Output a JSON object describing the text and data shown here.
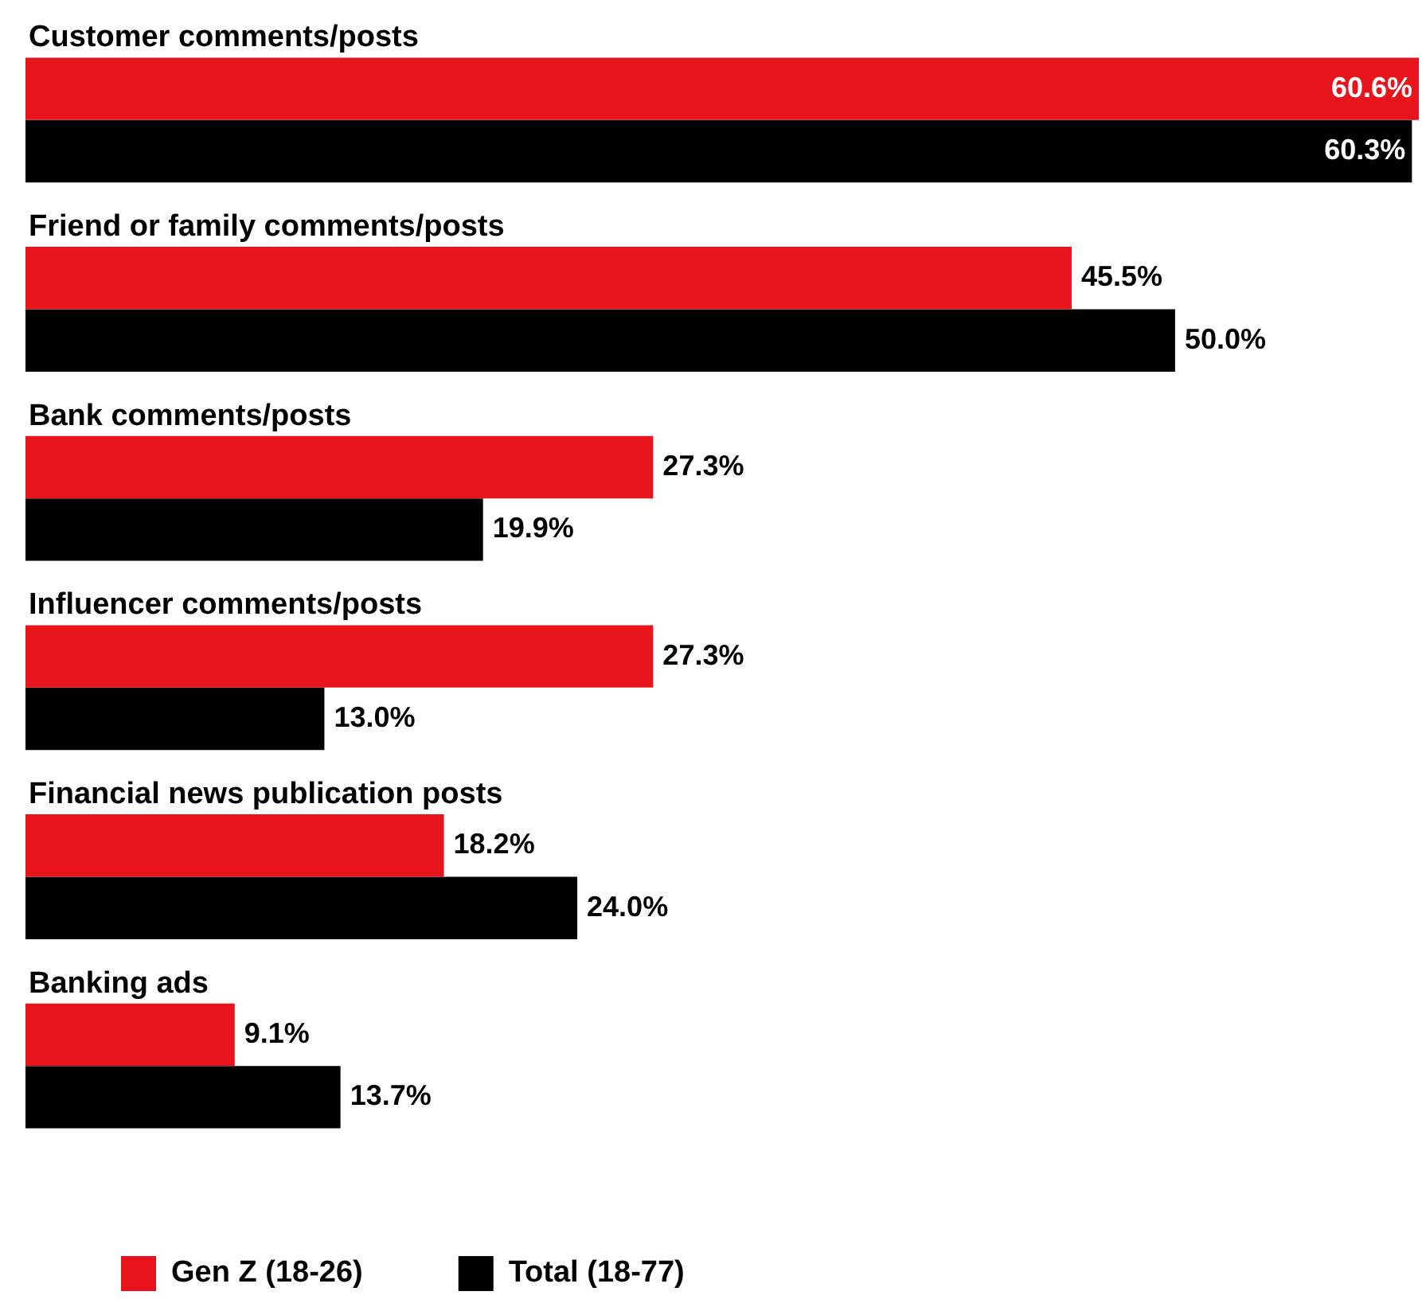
{
  "chart_data": {
    "type": "bar",
    "orientation": "horizontal",
    "categories": [
      "Customer comments/posts",
      "Friend or family comments/posts",
      "Bank comments/posts",
      "Influencer comments/posts",
      "Financial news publication posts",
      "Banking ads"
    ],
    "series": [
      {
        "name": "Gen Z (18-26)",
        "color": "#e8141c",
        "values": [
          60.6,
          45.5,
          27.3,
          27.3,
          18.2,
          9.1
        ],
        "value_labels": [
          "60.6%",
          "45.5%",
          "27.3%",
          "27.3%",
          "18.2%",
          "9.1%"
        ]
      },
      {
        "name": "Total (18-77)",
        "color": "#000000",
        "values": [
          60.3,
          50.0,
          19.9,
          13.0,
          24.0,
          13.7
        ],
        "value_labels": [
          "60.3%",
          "50.0%",
          "19.9%",
          "13.0%",
          "24.0%",
          "13.7%"
        ]
      }
    ],
    "legend": "bottom left"
  }
}
